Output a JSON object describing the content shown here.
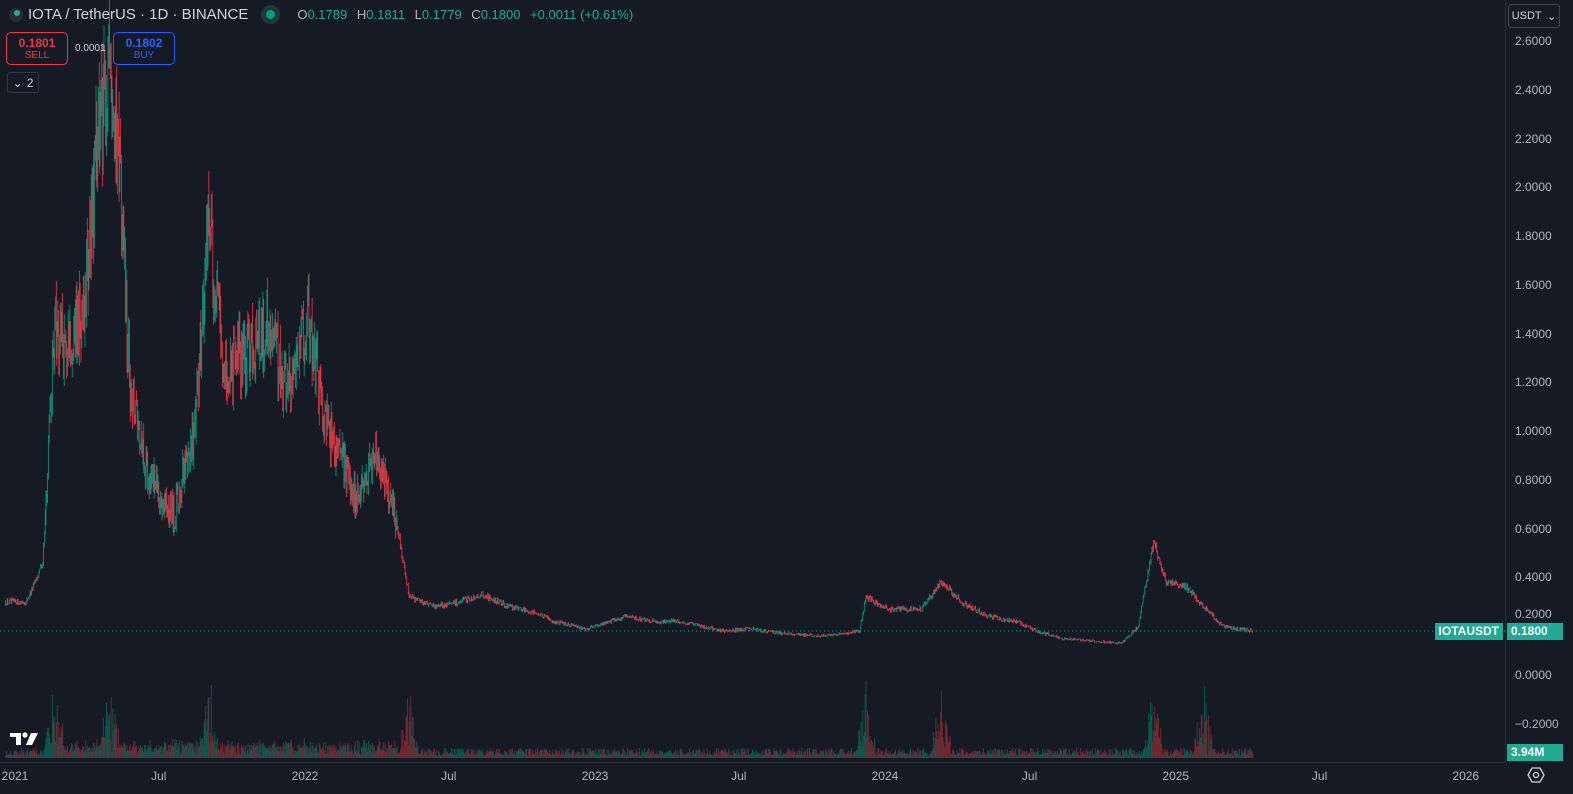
{
  "header": {
    "title": "IOTA / TetherUS · 1D · BINANCE",
    "ohlc": {
      "o_label": "O",
      "o": "0.1789",
      "h_label": "H",
      "h": "0.1811",
      "l_label": "L",
      "l": "0.1779",
      "c_label": "C",
      "c": "0.1800",
      "change": "+0.0011 (+0.61%)"
    }
  },
  "trade": {
    "sell_price": "0.1801",
    "sell_label": "SELL",
    "spread": "0.0001",
    "buy_price": "0.1802",
    "buy_label": "BUY"
  },
  "indicators": {
    "count": "2"
  },
  "currency": "USDT",
  "price_label": {
    "symbol": "IOTAUSDT",
    "value": "0.1800"
  },
  "volume_label": "3.94M",
  "colors": {
    "up": "#089981",
    "down": "#f23645",
    "bg": "#161a25",
    "accent": "#22ab94"
  },
  "chart_data": {
    "type": "candlestick",
    "title": "IOTA / TetherUS · 1D · BINANCE",
    "y_ticks": [
      "2.6000",
      "2.4000",
      "2.2000",
      "2.0000",
      "1.8000",
      "1.6000",
      "1.4000",
      "1.2000",
      "1.0000",
      "0.8000",
      "0.6000",
      "0.4000",
      "0.2000",
      "0.0000",
      "−0.2000"
    ],
    "x_ticks": [
      "2021",
      "Jul",
      "2022",
      "Jul",
      "2023",
      "Jul",
      "2024",
      "Jul",
      "2025",
      "Jul",
      "2026"
    ],
    "ylim": [
      -0.3,
      2.65
    ],
    "last_close": 0.18,
    "close_path": [
      [
        "2020-12-20",
        0.3
      ],
      [
        "2021-01-15",
        0.3
      ],
      [
        "2021-02-05",
        0.45
      ],
      [
        "2021-02-20",
        1.45
      ],
      [
        "2021-03-10",
        1.3
      ],
      [
        "2021-04-01",
        1.6
      ],
      [
        "2021-04-15",
        2.2
      ],
      [
        "2021-05-01",
        2.45
      ],
      [
        "2021-05-15",
        2.0
      ],
      [
        "2021-05-25",
        1.2
      ],
      [
        "2021-06-10",
        0.9
      ],
      [
        "2021-07-01",
        0.75
      ],
      [
        "2021-07-20",
        0.65
      ],
      [
        "2021-08-15",
        1.0
      ],
      [
        "2021-09-02",
        1.9
      ],
      [
        "2021-09-20",
        1.25
      ],
      [
        "2021-10-15",
        1.3
      ],
      [
        "2021-11-15",
        1.45
      ],
      [
        "2021-12-10",
        1.15
      ],
      [
        "2022-01-05",
        1.45
      ],
      [
        "2022-01-25",
        1.05
      ],
      [
        "2022-02-15",
        0.9
      ],
      [
        "2022-03-05",
        0.72
      ],
      [
        "2022-04-01",
        0.88
      ],
      [
        "2022-04-25",
        0.65
      ],
      [
        "2022-05-12",
        0.32
      ],
      [
        "2022-06-15",
        0.28
      ],
      [
        "2022-07-15",
        0.3
      ],
      [
        "2022-08-12",
        0.33
      ],
      [
        "2022-09-15",
        0.28
      ],
      [
        "2022-10-15",
        0.26
      ],
      [
        "2022-11-10",
        0.22
      ],
      [
        "2022-12-20",
        0.19
      ],
      [
        "2023-02-10",
        0.24
      ],
      [
        "2023-03-15",
        0.22
      ],
      [
        "2023-04-15",
        0.22
      ],
      [
        "2023-05-15",
        0.2
      ],
      [
        "2023-06-15",
        0.18
      ],
      [
        "2023-07-15",
        0.19
      ],
      [
        "2023-08-25",
        0.17
      ],
      [
        "2023-10-15",
        0.16
      ],
      [
        "2023-11-30",
        0.18
      ],
      [
        "2023-12-08",
        0.32
      ],
      [
        "2024-01-05",
        0.27
      ],
      [
        "2024-02-15",
        0.27
      ],
      [
        "2024-03-12",
        0.38
      ],
      [
        "2024-04-10",
        0.29
      ],
      [
        "2024-05-10",
        0.24
      ],
      [
        "2024-06-15",
        0.22
      ],
      [
        "2024-07-10",
        0.18
      ],
      [
        "2024-08-10",
        0.15
      ],
      [
        "2024-09-15",
        0.14
      ],
      [
        "2024-10-25",
        0.13
      ],
      [
        "2024-11-15",
        0.2
      ],
      [
        "2024-12-04",
        0.55
      ],
      [
        "2024-12-20",
        0.38
      ],
      [
        "2025-01-15",
        0.36
      ],
      [
        "2025-02-05",
        0.28
      ],
      [
        "2025-03-01",
        0.2
      ],
      [
        "2025-04-08",
        0.18
      ]
    ],
    "volume_spikes": [
      "2021-02-20",
      "2021-05-01",
      "2021-09-02",
      "2022-05-12",
      "2023-12-08",
      "2024-03-12",
      "2024-12-04",
      "2025-02-05"
    ]
  }
}
